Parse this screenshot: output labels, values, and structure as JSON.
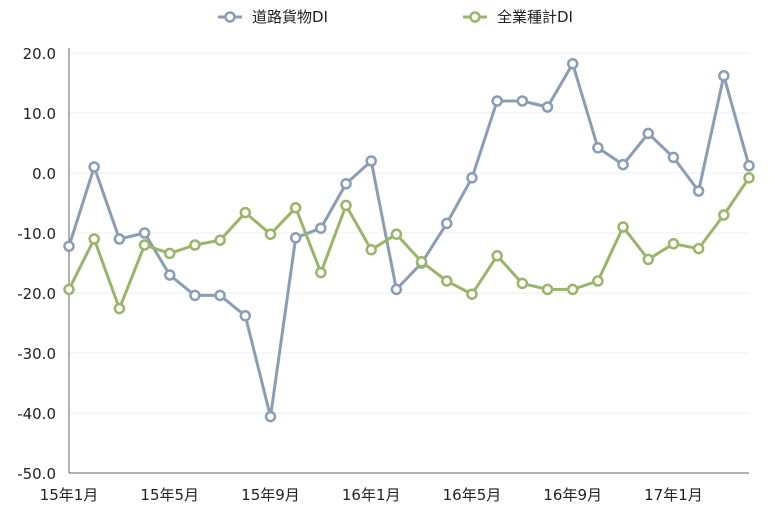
{
  "chart_data": {
    "type": "line",
    "title": "",
    "xlabel": "",
    "ylabel": "",
    "ylim": [
      -50,
      20
    ],
    "y_ticks": [
      "20.0",
      "10.0",
      "0.0",
      "-10.0",
      "-20.0",
      "-30.0",
      "-40.0",
      "-50.0"
    ],
    "x": [
      "15年1月",
      "15年2月",
      "15年3月",
      "15年4月",
      "15年5月",
      "15年6月",
      "15年7月",
      "15年8月",
      "15年9月",
      "15年10月",
      "15年11月",
      "15年12月",
      "16年1月",
      "16年2月",
      "16年3月",
      "16年4月",
      "16年5月",
      "16年6月",
      "16年7月",
      "16年8月",
      "16年9月",
      "16年10月",
      "16年11月",
      "16年12月",
      "17年1月",
      "17年2月",
      "17年3月",
      "17年4月"
    ],
    "x_tick_labels": [
      "15年1月",
      "15年5月",
      "15年9月",
      "16年1月",
      "16年5月",
      "16年9月",
      "17年1月"
    ],
    "grid": "horizontal",
    "legend_position": "top",
    "series": [
      {
        "name": "道路貨物DI",
        "color": "#8a9db5",
        "values": [
          -12.2,
          1.0,
          -11.0,
          -10.0,
          -17.0,
          -20.4,
          -20.4,
          -23.8,
          -40.6,
          -10.8,
          -9.2,
          -1.8,
          2.0,
          -19.4,
          -15.0,
          -8.4,
          -0.8,
          12.0,
          12.0,
          11.0,
          18.2,
          4.2,
          1.4,
          6.6,
          2.6,
          -3.0,
          16.2,
          1.2
        ]
      },
      {
        "name": "全業種計DI",
        "color": "#9ab56a",
        "values": [
          -19.4,
          -11.0,
          -22.6,
          -12.0,
          -13.4,
          -12.0,
          -11.2,
          -6.6,
          -10.2,
          -5.8,
          -16.6,
          -5.4,
          -12.8,
          -10.2,
          -14.8,
          -18.0,
          -20.2,
          -13.8,
          -18.4,
          -19.4,
          -19.4,
          -18.0,
          -9.0,
          -14.4,
          -11.8,
          -12.6,
          -7.0,
          -0.8
        ]
      }
    ]
  }
}
